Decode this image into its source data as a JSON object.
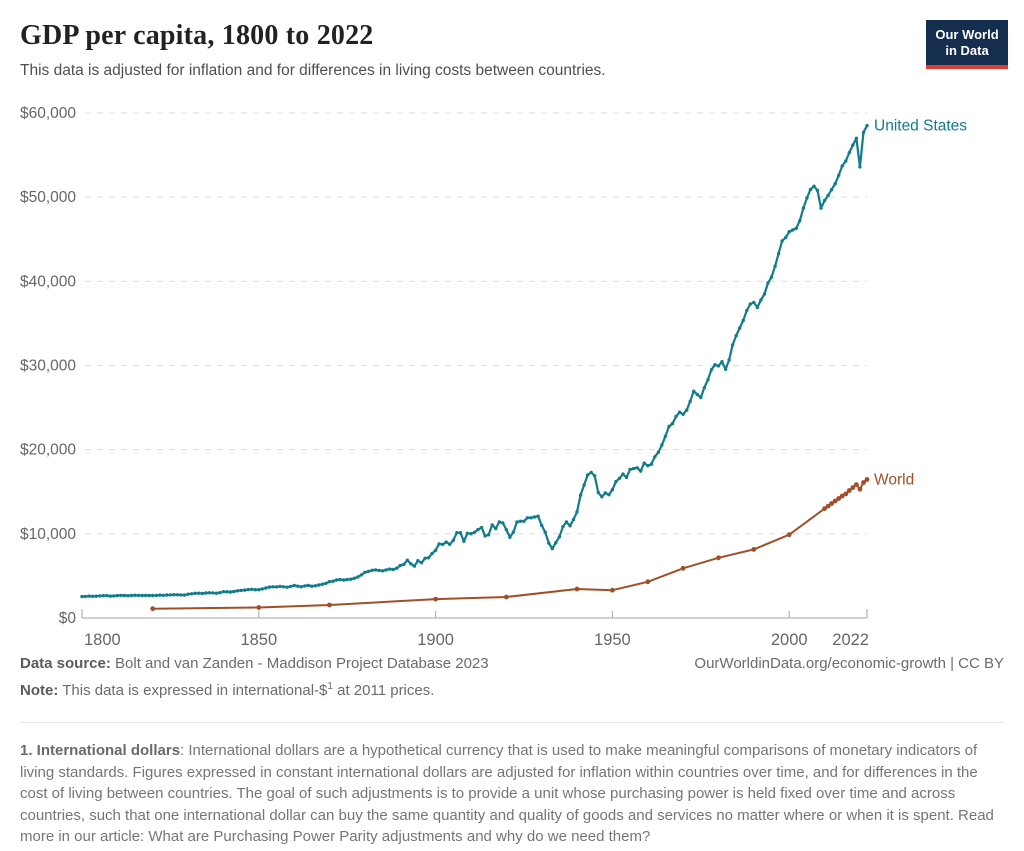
{
  "header": {
    "title": "GDP per capita, 1800 to 2022",
    "subtitle": "This data is adjusted for inflation and for differences in living costs between countries.",
    "logo": {
      "line1": "Our World",
      "line2": "in Data",
      "bg_color": "#152d4f",
      "bar_color": "#e23d2e"
    }
  },
  "chart_data": {
    "type": "line",
    "title": "GDP per capita, 1800 to 2022",
    "xlabel": "",
    "ylabel": "",
    "x_range": [
      1800,
      2022
    ],
    "ylim": [
      0,
      60000
    ],
    "grid": true,
    "legend_position": "end-of-line",
    "axis_color": "#a3a3a3",
    "grid_color": "#dcdcdc",
    "tick_text_color": "#666666",
    "yticks": [
      {
        "value": 0,
        "label": "$0"
      },
      {
        "value": 10000,
        "label": "$10,000"
      },
      {
        "value": 20000,
        "label": "$20,000"
      },
      {
        "value": 30000,
        "label": "$30,000"
      },
      {
        "value": 40000,
        "label": "$40,000"
      },
      {
        "value": 50000,
        "label": "$50,000"
      },
      {
        "value": 60000,
        "label": "$60,000"
      }
    ],
    "xticks": [
      {
        "value": 1800,
        "label": "1800"
      },
      {
        "value": 1850,
        "label": "1850"
      },
      {
        "value": 1900,
        "label": "1900"
      },
      {
        "value": 1950,
        "label": "1950"
      },
      {
        "value": 2000,
        "label": "2000"
      },
      {
        "value": 2022,
        "label": "2022"
      }
    ],
    "series": [
      {
        "name": "United States",
        "color": "#117c8b",
        "marker_radius": 1.7,
        "line_width": 2.2,
        "start_year": 1800,
        "step": 1,
        "values": [
          2545,
          2570,
          2600,
          2580,
          2590,
          2620,
          2650,
          2660,
          2600,
          2630,
          2660,
          2690,
          2670,
          2650,
          2670,
          2700,
          2690,
          2670,
          2690,
          2670,
          2670,
          2690,
          2720,
          2700,
          2730,
          2750,
          2770,
          2760,
          2740,
          2720,
          2825,
          2880,
          2930,
          2950,
          2910,
          2970,
          3000,
          2980,
          2950,
          3010,
          3130,
          3110,
          3090,
          3150,
          3230,
          3280,
          3310,
          3380,
          3410,
          3360,
          3360,
          3460,
          3560,
          3670,
          3710,
          3690,
          3750,
          3710,
          3660,
          3760,
          3870,
          3780,
          3720,
          3810,
          3870,
          3780,
          3820,
          3920,
          4010,
          4120,
          4310,
          4370,
          4510,
          4560,
          4510,
          4560,
          4610,
          4720,
          4870,
          5120,
          5430,
          5540,
          5670,
          5710,
          5660,
          5610,
          5710,
          5810,
          5760,
          5920,
          6220,
          6370,
          6870,
          6430,
          6170,
          6810,
          6570,
          7090,
          7150,
          7680,
          8040,
          8800,
          8740,
          9020,
          8760,
          9230,
          10130,
          10130,
          9110,
          10060,
          10010,
          10180,
          10500,
          10740,
          9760,
          9880,
          11060,
          10620,
          11400,
          11300,
          10500,
          9600,
          10200,
          11400,
          11500,
          11500,
          11900,
          11900,
          12000,
          12100,
          11000,
          10200,
          8900,
          8250,
          8950,
          9650,
          10850,
          11400,
          10950,
          11700,
          12600,
          14600,
          15800,
          17000,
          17300,
          16900,
          14900,
          14400,
          14850,
          14650,
          15240,
          16200,
          16600,
          17100,
          16700,
          17650,
          17750,
          17850,
          17450,
          18400,
          18100,
          18270,
          19150,
          19700,
          20550,
          21600,
          22750,
          23100,
          23950,
          24450,
          24200,
          24700,
          25750,
          26950,
          26550,
          26200,
          27350,
          28300,
          29500,
          30100,
          29950,
          30450,
          29550,
          30650,
          32450,
          33550,
          34450,
          35350,
          36550,
          37300,
          37500,
          36900,
          37800,
          38500,
          39800,
          40500,
          41800,
          43300,
          44800,
          45200,
          45900,
          46100,
          46300,
          47200,
          48700,
          49900,
          50900,
          51300,
          50800,
          48700,
          49600,
          50200,
          50900,
          51600,
          52600,
          53700,
          54300,
          55300,
          56200,
          57000,
          53600,
          57700,
          58500
        ]
      },
      {
        "name": "World",
        "color": "#a04f28",
        "marker_radius": 2.4,
        "line_width": 2,
        "points": [
          [
            1820,
            1100
          ],
          [
            1850,
            1250
          ],
          [
            1870,
            1540
          ],
          [
            1900,
            2250
          ],
          [
            1920,
            2500
          ],
          [
            1940,
            3450
          ],
          [
            1950,
            3300
          ],
          [
            1960,
            4300
          ],
          [
            1970,
            5900
          ],
          [
            1980,
            7150
          ],
          [
            1990,
            8150
          ],
          [
            2000,
            9900
          ],
          [
            2010,
            13000
          ],
          [
            2011,
            13300
          ],
          [
            2012,
            13600
          ],
          [
            2013,
            13900
          ],
          [
            2014,
            14200
          ],
          [
            2015,
            14500
          ],
          [
            2016,
            14750
          ],
          [
            2017,
            15150
          ],
          [
            2018,
            15500
          ],
          [
            2019,
            15850
          ],
          [
            2020,
            15300
          ],
          [
            2021,
            16100
          ],
          [
            2022,
            16450
          ]
        ]
      }
    ]
  },
  "footer": {
    "source_label": "Data source:",
    "source_text": "Bolt and van Zanden - Maddison Project Database 2023",
    "link_text": "OurWorldinData.org/economic-growth | CC BY",
    "note_label": "Note:",
    "note_pre": "This data is expressed in international-$",
    "note_sup": "1",
    "note_post": " at 2011 prices."
  },
  "footnote": {
    "bold": "1. International dollars",
    "text": ": International dollars are a hypothetical currency that is used to make meaningful comparisons of monetary indicators of living standards. Figures expressed in constant international dollars are adjusted for inflation within countries over time, and for differences in the cost of living between countries. The goal of such adjustments is to provide a unit whose purchasing power is held fixed over time and across countries, such that one international dollar can buy the same quantity and quality of goods and services no matter where or when it is spent. Read more in our article: What are Purchasing Power Parity adjustments and why do we need them?"
  }
}
